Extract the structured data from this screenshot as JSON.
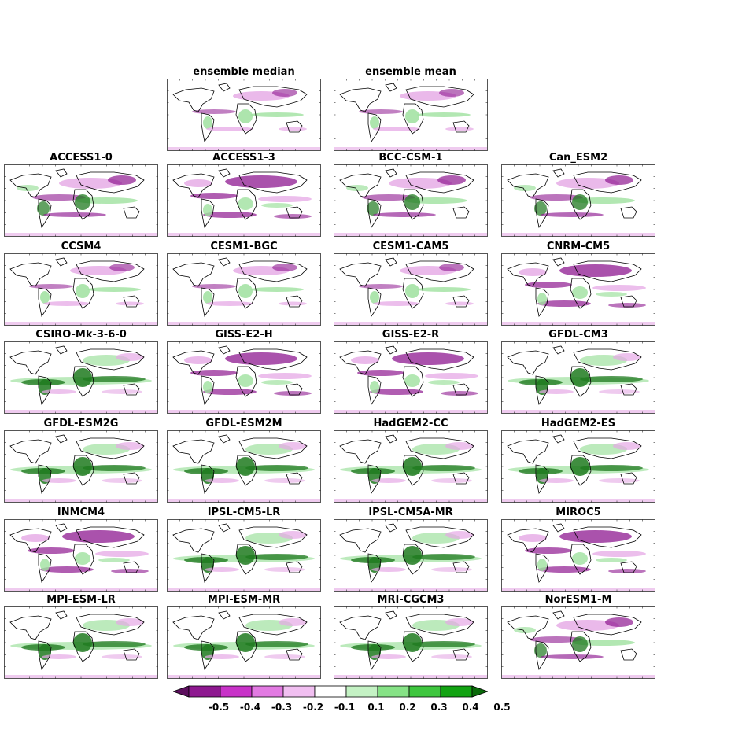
{
  "figure": {
    "panels": [
      {
        "id": "ensemble-median",
        "title": "ensemble median",
        "row": 0,
        "col": 1,
        "pattern": "ensemble"
      },
      {
        "id": "ensemble-mean",
        "title": "ensemble mean",
        "row": 0,
        "col": 2,
        "pattern": "ensemble"
      },
      {
        "id": "access1-0",
        "title": "ACCESS1-0",
        "row": 1,
        "col": 0,
        "pattern": "mixed"
      },
      {
        "id": "access1-3",
        "title": "ACCESS1-3",
        "row": 1,
        "col": 1,
        "pattern": "magenta"
      },
      {
        "id": "bcc-csm-1",
        "title": "BCC-CSM-1",
        "row": 1,
        "col": 2,
        "pattern": "mixed"
      },
      {
        "id": "can-esm2",
        "title": "Can_ESM2",
        "row": 1,
        "col": 3,
        "pattern": "mixed"
      },
      {
        "id": "ccsm4",
        "title": "CCSM4",
        "row": 2,
        "col": 0,
        "pattern": "ensemble"
      },
      {
        "id": "cesm1-bgc",
        "title": "CESM1-BGC",
        "row": 2,
        "col": 1,
        "pattern": "ensemble"
      },
      {
        "id": "cesm1-cam5",
        "title": "CESM1-CAM5",
        "row": 2,
        "col": 2,
        "pattern": "ensemble"
      },
      {
        "id": "cnrm-cm5",
        "title": "CNRM-CM5",
        "row": 2,
        "col": 3,
        "pattern": "magenta"
      },
      {
        "id": "csiro-mk-3-6-0",
        "title": "CSIRO-Mk-3-6-0",
        "row": 3,
        "col": 0,
        "pattern": "green"
      },
      {
        "id": "giss-e2-h",
        "title": "GISS-E2-H",
        "row": 3,
        "col": 1,
        "pattern": "magenta"
      },
      {
        "id": "giss-e2-r",
        "title": "GISS-E2-R",
        "row": 3,
        "col": 2,
        "pattern": "magenta"
      },
      {
        "id": "gfdl-cm3",
        "title": "GFDL-CM3",
        "row": 3,
        "col": 3,
        "pattern": "green"
      },
      {
        "id": "gfdl-esm2g",
        "title": "GFDL-ESM2G",
        "row": 4,
        "col": 0,
        "pattern": "green"
      },
      {
        "id": "gfdl-esm2m",
        "title": "GFDL-ESM2M",
        "row": 4,
        "col": 1,
        "pattern": "green"
      },
      {
        "id": "hadgem2-cc",
        "title": "HadGEM2-CC",
        "row": 4,
        "col": 2,
        "pattern": "green"
      },
      {
        "id": "hadgem2-es",
        "title": "HadGEM2-ES",
        "row": 4,
        "col": 3,
        "pattern": "green"
      },
      {
        "id": "inmcm4",
        "title": "INMCM4",
        "row": 5,
        "col": 0,
        "pattern": "magenta"
      },
      {
        "id": "ipsl-cm5-lr",
        "title": "IPSL-CM5-LR",
        "row": 5,
        "col": 1,
        "pattern": "green"
      },
      {
        "id": "ipsl-cm5a-mr",
        "title": "IPSL-CM5A-MR",
        "row": 5,
        "col": 2,
        "pattern": "green"
      },
      {
        "id": "miroc5",
        "title": "MIROC5",
        "row": 5,
        "col": 3,
        "pattern": "magenta"
      },
      {
        "id": "mpi-esm-lr",
        "title": "MPI-ESM-LR",
        "row": 6,
        "col": 0,
        "pattern": "green"
      },
      {
        "id": "mpi-esm-mr",
        "title": "MPI-ESM-MR",
        "row": 6,
        "col": 1,
        "pattern": "green"
      },
      {
        "id": "mri-cgcm3",
        "title": "MRI-CGCM3",
        "row": 6,
        "col": 2,
        "pattern": "green"
      },
      {
        "id": "noresm1-m",
        "title": "NorESM1-M",
        "row": 6,
        "col": 3,
        "pattern": "mixed"
      }
    ]
  },
  "colorbar": {
    "ticks": [
      "-0.5",
      "-0.4",
      "-0.3",
      "-0.2",
      "-0.1",
      "0.1",
      "0.2",
      "0.3",
      "0.4",
      "0.5"
    ],
    "colors": [
      "#5c0f5e",
      "#8e1890",
      "#c832c8",
      "#e27ae2",
      "#f1bff1",
      "#ffffff",
      "#c4f2c4",
      "#86e286",
      "#3ec63e",
      "#12a312",
      "#0a6a0a"
    ]
  },
  "colors": {
    "strong_magenta": "#8e1890",
    "light_magenta": "#e5a8e5",
    "strong_green": "#1f7a1f",
    "light_green": "#9fe19f",
    "background": "#ffffff"
  }
}
